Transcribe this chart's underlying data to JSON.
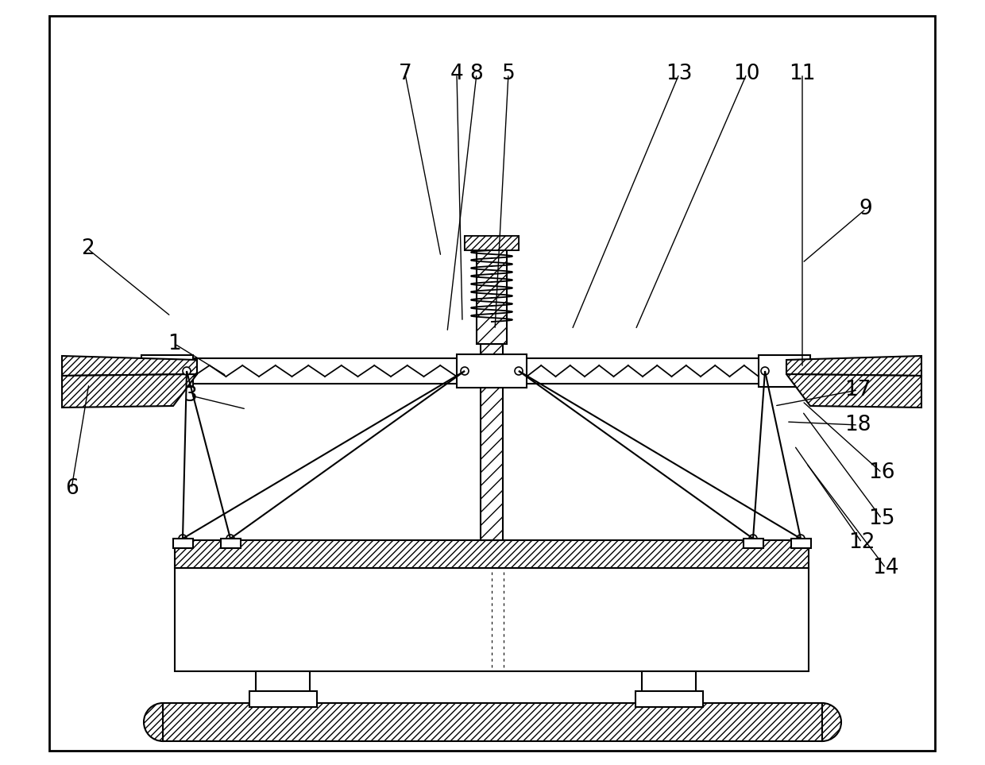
{
  "bg_color": "#ffffff",
  "line_color": "#000000",
  "fig_width": 12.4,
  "fig_height": 9.63,
  "lw": 1.5,
  "lw_thick": 2.0,
  "labels_info": [
    [
      "1",
      220,
      530,
      285,
      490
    ],
    [
      "2",
      110,
      650,
      215,
      565
    ],
    [
      "3",
      240,
      465,
      310,
      448
    ],
    [
      "4",
      575,
      870,
      582,
      558
    ],
    [
      "5",
      640,
      870,
      623,
      548
    ],
    [
      "6",
      90,
      348,
      112,
      480
    ],
    [
      "7",
      510,
      870,
      555,
      640
    ],
    [
      "8",
      600,
      870,
      563,
      545
    ],
    [
      "9",
      1090,
      700,
      1010,
      632
    ],
    [
      "10",
      940,
      870,
      800,
      548
    ],
    [
      "11",
      1010,
      870,
      1010,
      500
    ],
    [
      "12",
      1085,
      280,
      1000,
      402
    ],
    [
      "13",
      855,
      870,
      720,
      548
    ],
    [
      "14",
      1115,
      248,
      1015,
      380
    ],
    [
      "15",
      1110,
      310,
      1010,
      445
    ],
    [
      "16",
      1110,
      368,
      1010,
      458
    ],
    [
      "17",
      1080,
      472,
      975,
      452
    ],
    [
      "18",
      1080,
      428,
      990,
      432
    ]
  ]
}
